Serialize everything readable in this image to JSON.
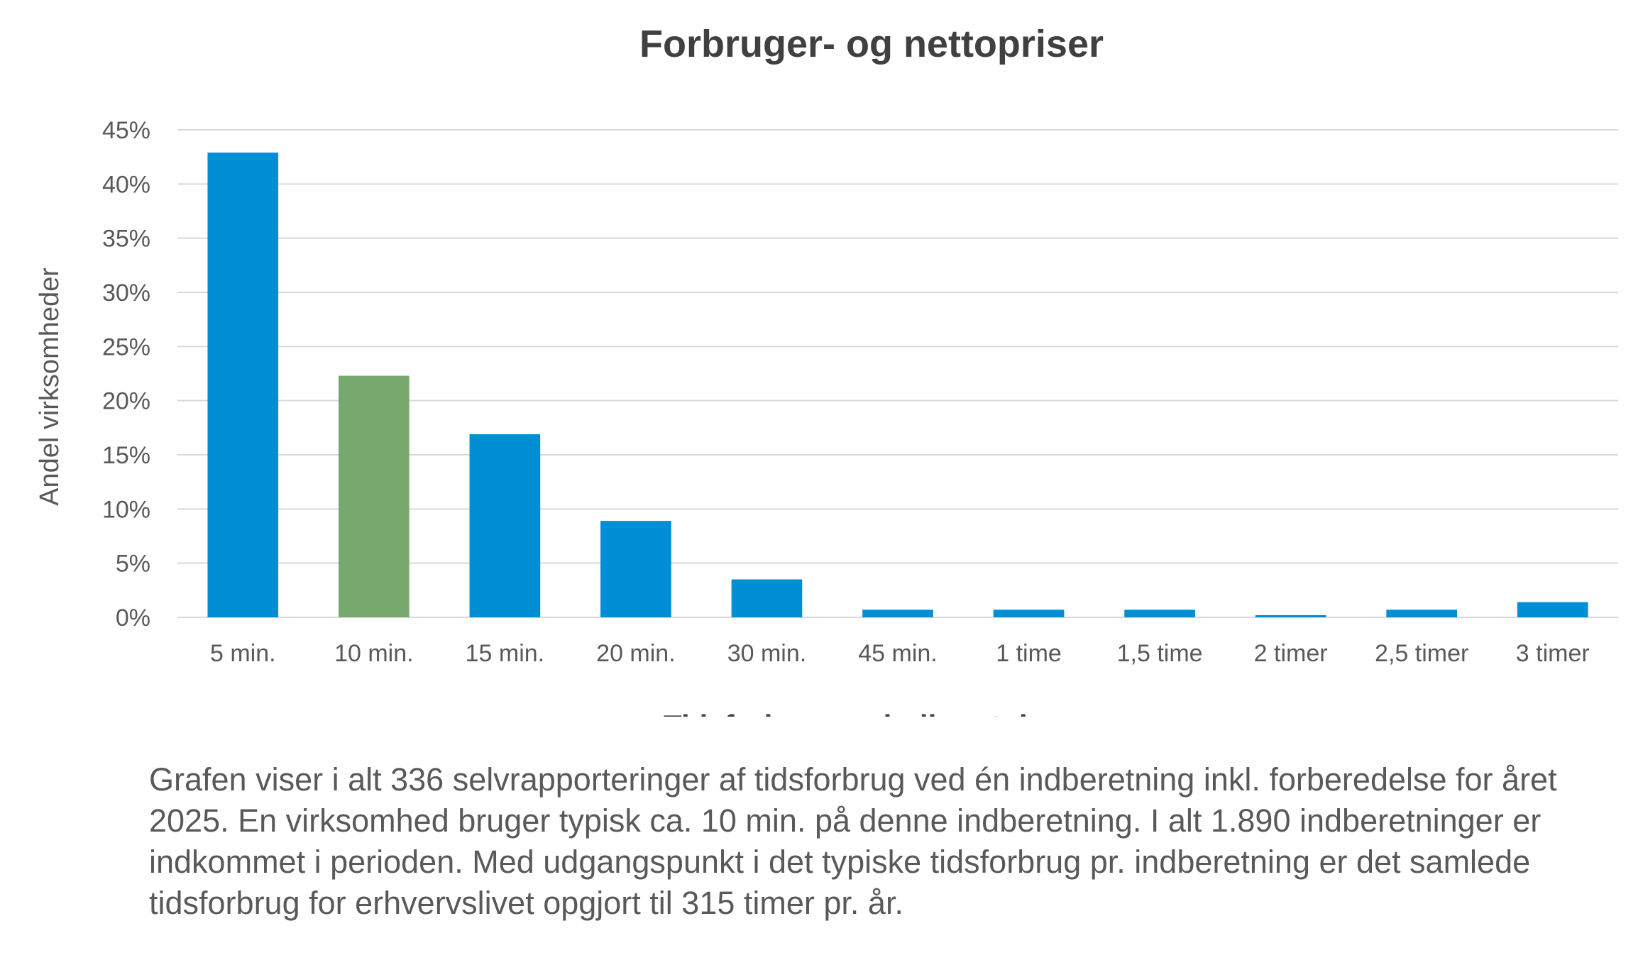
{
  "chart_data": {
    "type": "bar",
    "title": "Forbruger- og nettopriser",
    "xlabel": "Tidsforbrug pr. indberetning",
    "ylabel": "Andel virksomheder",
    "categories": [
      "5 min.",
      "10 min.",
      "15 min.",
      "20 min.",
      "30 min.",
      "45 min.",
      "1 time",
      "1,5 time",
      "2 timer",
      "2,5 timer",
      "3 timer"
    ],
    "values": [
      42.9,
      22.3,
      16.9,
      8.9,
      3.5,
      0.7,
      0.7,
      0.7,
      0.2,
      0.7,
      1.4
    ],
    "highlight_index": 1,
    "y_unit": "%",
    "ylim": [
      0,
      45
    ],
    "yticks": [
      0,
      5,
      10,
      15,
      20,
      25,
      30,
      35,
      40,
      45
    ],
    "grid": true,
    "legend": "none",
    "colors": {
      "bar": "#008fd5",
      "highlight": "#77a96f",
      "grid": "#d9d9d9"
    }
  },
  "caption": "Grafen viser i alt 336 selvrapporteringer af tidsforbrug ved én indberetning inkl. forberedelse for året 2025. En virksomhed bruger typisk ca. 10 min. på denne indberetning. I alt 1.890 indberetninger er indkommet i perioden. Med udgangspunkt i det typiske tidsforbrug pr. indberetning er det samlede tidsforbrug for erhvervslivet opgjort til 315 timer pr. år."
}
